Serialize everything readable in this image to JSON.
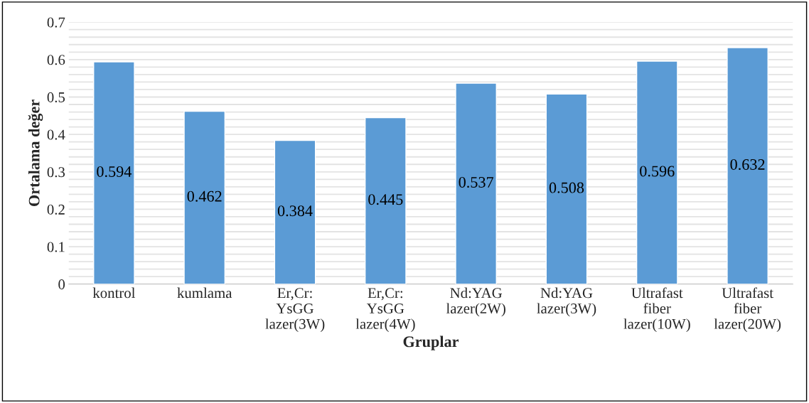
{
  "chart_data": {
    "type": "bar",
    "xlabel": "Gruplar",
    "ylabel": "Ortalama değer",
    "categories": [
      "kontrol",
      "kumlama",
      "Er,Cr:\nYsGG\nlazer(3W)",
      "Er,Cr:\nYsGG\nlazer(4W)",
      "Nd:YAG\nlazer(2W)",
      "Nd:YAG\nlazer(3W)",
      "Ultrafast\nfiber\nlazer(10W)",
      "Ultrafast\nfiber\nlazer(20W)"
    ],
    "values": [
      0.594,
      0.462,
      0.384,
      0.445,
      0.537,
      0.508,
      0.596,
      0.632
    ],
    "color": "#5b9bd5",
    "data_labels": true,
    "grid": "y",
    "legend": false,
    "ylim": [
      0,
      0.7
    ],
    "yticks": [
      0,
      {
        "value": 0.02,
        "label": null
      },
      {
        "value": 0.04,
        "label": null
      },
      {
        "value": 0.06,
        "label": null
      },
      {
        "value": 0.08,
        "label": null
      },
      0.1,
      {
        "value": 0.12,
        "label": null
      },
      {
        "value": 0.14,
        "label": null
      },
      {
        "value": 0.16,
        "label": null
      },
      {
        "value": 0.18,
        "label": null
      },
      0.2,
      {
        "value": 0.22,
        "label": null
      },
      {
        "value": 0.24,
        "label": null
      },
      {
        "value": 0.26,
        "label": null
      },
      {
        "value": 0.28,
        "label": null
      },
      0.3,
      {
        "value": 0.32,
        "label": null
      },
      {
        "value": 0.34,
        "label": null
      },
      {
        "value": 0.36,
        "label": null
      },
      {
        "value": 0.38,
        "label": null
      },
      0.4,
      {
        "value": 0.42,
        "label": null
      },
      {
        "value": 0.44,
        "label": null
      },
      {
        "value": 0.46,
        "label": null
      },
      {
        "value": 0.48,
        "label": null
      },
      0.5,
      {
        "value": 0.52,
        "label": null
      },
      {
        "value": 0.54,
        "label": null
      },
      {
        "value": 0.56,
        "label": null
      },
      {
        "value": 0.58,
        "label": null
      },
      0.6,
      {
        "value": 0.62,
        "label": null
      },
      {
        "value": 0.64,
        "label": null
      },
      {
        "value": 0.66,
        "label": null
      },
      {
        "value": 0.68,
        "label": null
      },
      0.7
    ]
  }
}
